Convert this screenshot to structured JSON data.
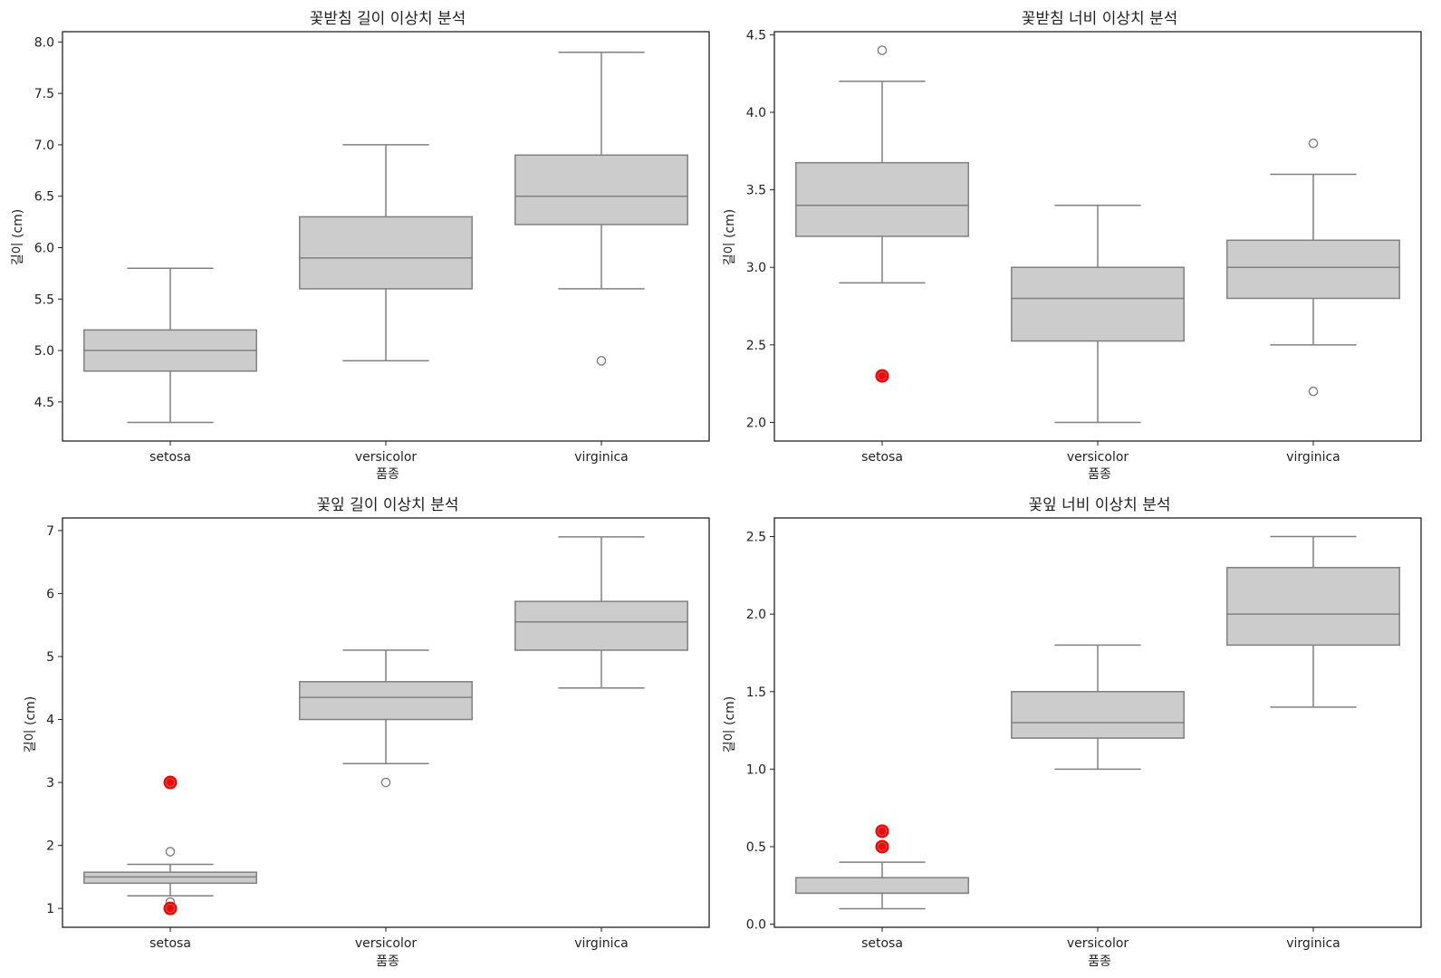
{
  "colors": {
    "box_fill": "#cccccc",
    "box_stroke": "#808080",
    "outlier_highlight": "#ff0000"
  },
  "chart_data": [
    {
      "type": "box",
      "title": "꽃받침 길이 이상치 분석",
      "xlabel": "품종",
      "ylabel": "길이 (cm)",
      "ylim": [
        4.12,
        8.1
      ],
      "yticks": [
        4.5,
        5.0,
        5.5,
        6.0,
        6.5,
        7.0,
        7.5,
        8.0
      ],
      "ytick_labels": [
        "4.5",
        "5.0",
        "5.5",
        "6.0",
        "6.5",
        "7.0",
        "7.5",
        "8.0"
      ],
      "categories": [
        "setosa",
        "versicolor",
        "virginica"
      ],
      "boxes": [
        {
          "whislo": 4.3,
          "q1": 4.8,
          "med": 5.0,
          "q3": 5.2,
          "whishi": 5.8,
          "fliers": [],
          "highlighted": []
        },
        {
          "whislo": 4.9,
          "q1": 5.6,
          "med": 5.9,
          "q3": 6.3,
          "whishi": 7.0,
          "fliers": [],
          "highlighted": []
        },
        {
          "whislo": 5.6,
          "q1": 6.225,
          "med": 6.5,
          "q3": 6.9,
          "whishi": 7.9,
          "fliers": [
            4.9
          ],
          "highlighted": []
        }
      ],
      "grid": false
    },
    {
      "type": "box",
      "title": "꽃받침 너비 이상치 분석",
      "xlabel": "품종",
      "ylabel": "길이 (cm)",
      "ylim": [
        1.88,
        4.52
      ],
      "yticks": [
        2.0,
        2.5,
        3.0,
        3.5,
        4.0,
        4.5
      ],
      "ytick_labels": [
        "2.0",
        "2.5",
        "3.0",
        "3.5",
        "4.0",
        "4.5"
      ],
      "categories": [
        "setosa",
        "versicolor",
        "virginica"
      ],
      "boxes": [
        {
          "whislo": 2.9,
          "q1": 3.2,
          "med": 3.4,
          "q3": 3.675,
          "whishi": 4.2,
          "fliers": [
            4.4
          ],
          "highlighted": [
            2.3
          ]
        },
        {
          "whislo": 2.0,
          "q1": 2.525,
          "med": 2.8,
          "q3": 3.0,
          "whishi": 3.4,
          "fliers": [],
          "highlighted": []
        },
        {
          "whislo": 2.5,
          "q1": 2.8,
          "med": 3.0,
          "q3": 3.175,
          "whishi": 3.6,
          "fliers": [
            3.8,
            2.2
          ],
          "highlighted": []
        }
      ],
      "grid": false
    },
    {
      "type": "box",
      "title": "꽃잎 길이 이상치 분석",
      "xlabel": "품종",
      "ylabel": "길이 (cm)",
      "ylim": [
        0.7,
        7.2
      ],
      "yticks": [
        1,
        2,
        3,
        4,
        5,
        6,
        7
      ],
      "ytick_labels": [
        "1",
        "2",
        "3",
        "4",
        "5",
        "6",
        "7"
      ],
      "categories": [
        "setosa",
        "versicolor",
        "virginica"
      ],
      "boxes": [
        {
          "whislo": 1.2,
          "q1": 1.4,
          "med": 1.5,
          "q3": 1.575,
          "whishi": 1.7,
          "fliers": [
            1.9,
            1.1
          ],
          "highlighted": [
            3.0,
            1.0
          ]
        },
        {
          "whislo": 3.3,
          "q1": 4.0,
          "med": 4.35,
          "q3": 4.6,
          "whishi": 5.1,
          "fliers": [
            3.0
          ],
          "highlighted": []
        },
        {
          "whislo": 4.5,
          "q1": 5.1,
          "med": 5.55,
          "q3": 5.875,
          "whishi": 6.9,
          "fliers": [],
          "highlighted": []
        }
      ],
      "grid": false
    },
    {
      "type": "box",
      "title": "꽃잎 너비 이상치 분석",
      "xlabel": "품종",
      "ylabel": "길이 (cm)",
      "ylim": [
        -0.02,
        2.62
      ],
      "yticks": [
        0.0,
        0.5,
        1.0,
        1.5,
        2.0,
        2.5
      ],
      "ytick_labels": [
        "0.0",
        "0.5",
        "1.0",
        "1.5",
        "2.0",
        "2.5"
      ],
      "categories": [
        "setosa",
        "versicolor",
        "virginica"
      ],
      "boxes": [
        {
          "whislo": 0.1,
          "q1": 0.2,
          "med": 0.2,
          "q3": 0.3,
          "whishi": 0.4,
          "fliers": [],
          "highlighted": [
            0.6,
            0.5
          ]
        },
        {
          "whislo": 1.0,
          "q1": 1.2,
          "med": 1.3,
          "q3": 1.5,
          "whishi": 1.8,
          "fliers": [],
          "highlighted": []
        },
        {
          "whislo": 1.4,
          "q1": 1.8,
          "med": 2.0,
          "q3": 2.3,
          "whishi": 2.5,
          "fliers": [],
          "highlighted": []
        }
      ],
      "grid": false
    }
  ]
}
